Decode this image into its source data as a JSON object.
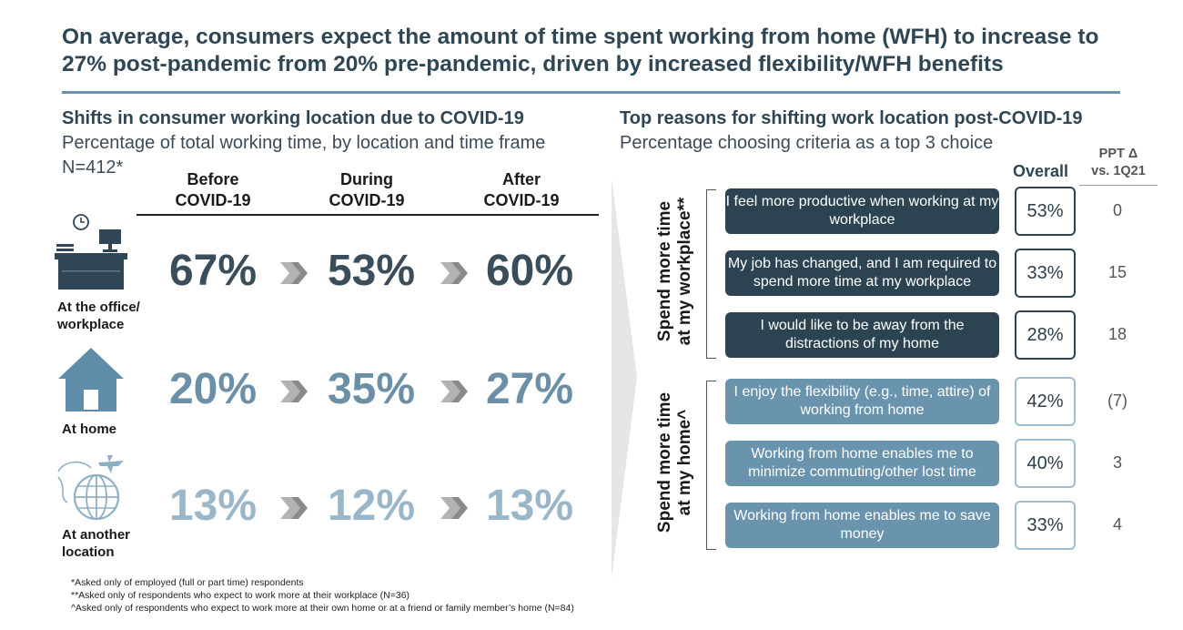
{
  "title": "On average, consumers expect the amount of time spent working from home (WFH) to increase to 27% post-pandemic from 20% pre-pandemic, driven by increased flexibility/WFH benefits",
  "left": {
    "heading": "Shifts in consumer working location due to COVID-19",
    "subheading": "Percentage of total working time, by location and time frame",
    "n": "N=412*"
  },
  "right": {
    "heading": "Top reasons for shifting work location post-COVID-19",
    "subheading": "Percentage choosing criteria as a top 3 choice",
    "overall_label": "Overall",
    "ppt_label_1": "PPT Δ",
    "ppt_label_2": "vs. 1Q21",
    "group1_label_1": "Spend more time",
    "group1_label_2": "at my workplace**",
    "group2_label_1": "Spend more time",
    "group2_label_2": "at my home^"
  },
  "icons": {
    "office": "office-desk-icon",
    "home": "house-icon",
    "other": "globe-plane-icon"
  },
  "colors": {
    "dark": "#2c4452",
    "mid": "#6a94ad",
    "light": "#9dbccd",
    "office_value": "#3a4d5b",
    "home_value": "#6a8fa6",
    "other_value": "#9ab7c9"
  },
  "footnotes": {
    "f1": "*Asked only of employed (full or part time) respondents",
    "f2": "**Asked only of respondents who expect to work more at their workplace (N=36)",
    "f3": "^Asked only of respondents who expect to work more at their own home or at a friend or family member’s home (N=84)"
  },
  "chart_data": [
    {
      "type": "table",
      "title": "Shifts in consumer working location due to COVID-19",
      "columns": [
        "Before COVID-19",
        "During COVID-19",
        "After COVID-19"
      ],
      "column_lines": [
        [
          "Before",
          "COVID-19"
        ],
        [
          "During",
          "COVID-19"
        ],
        [
          "After",
          "COVID-19"
        ]
      ],
      "row_labels": [
        [
          "At the office/",
          "workplace"
        ],
        [
          "At home"
        ],
        [
          "At another",
          "location"
        ]
      ],
      "rows": [
        {
          "label": "At the office/workplace",
          "values": [
            67,
            53,
            60
          ]
        },
        {
          "label": "At home",
          "values": [
            20,
            35,
            27
          ]
        },
        {
          "label": "At another location",
          "values": [
            13,
            12,
            13
          ]
        }
      ],
      "value_labels": [
        [
          "67%",
          "53%",
          "60%"
        ],
        [
          "20%",
          "35%",
          "27%"
        ],
        [
          "13%",
          "12%",
          "13%"
        ]
      ],
      "unit": "%"
    },
    {
      "type": "table",
      "title": "Top reasons for shifting work location post-COVID-19",
      "groups": [
        "Spend more time at my workplace**",
        "Spend more time at my home^"
      ],
      "rows": [
        {
          "group": 0,
          "label": "I feel more productive when working at my workplace",
          "overall": 53,
          "overall_label": "53%",
          "ppt_change": "0"
        },
        {
          "group": 0,
          "label": "My job has changed, and I am required to spend more time at my workplace",
          "overall": 33,
          "overall_label": "33%",
          "ppt_change": "15"
        },
        {
          "group": 0,
          "label": "I would like to be away from the distractions of my home",
          "overall": 28,
          "overall_label": "28%",
          "ppt_change": "18"
        },
        {
          "group": 1,
          "label": "I enjoy the flexibility (e.g., time, attire) of working from home",
          "overall": 42,
          "overall_label": "42%",
          "ppt_change": "(7)"
        },
        {
          "group": 1,
          "label": "Working from home enables me to minimize commuting/other lost time",
          "overall": 40,
          "overall_label": "40%",
          "ppt_change": "3"
        },
        {
          "group": 1,
          "label": "Working from home enables me to save money",
          "overall": 33,
          "overall_label": "33%",
          "ppt_change": "4"
        }
      ]
    }
  ]
}
